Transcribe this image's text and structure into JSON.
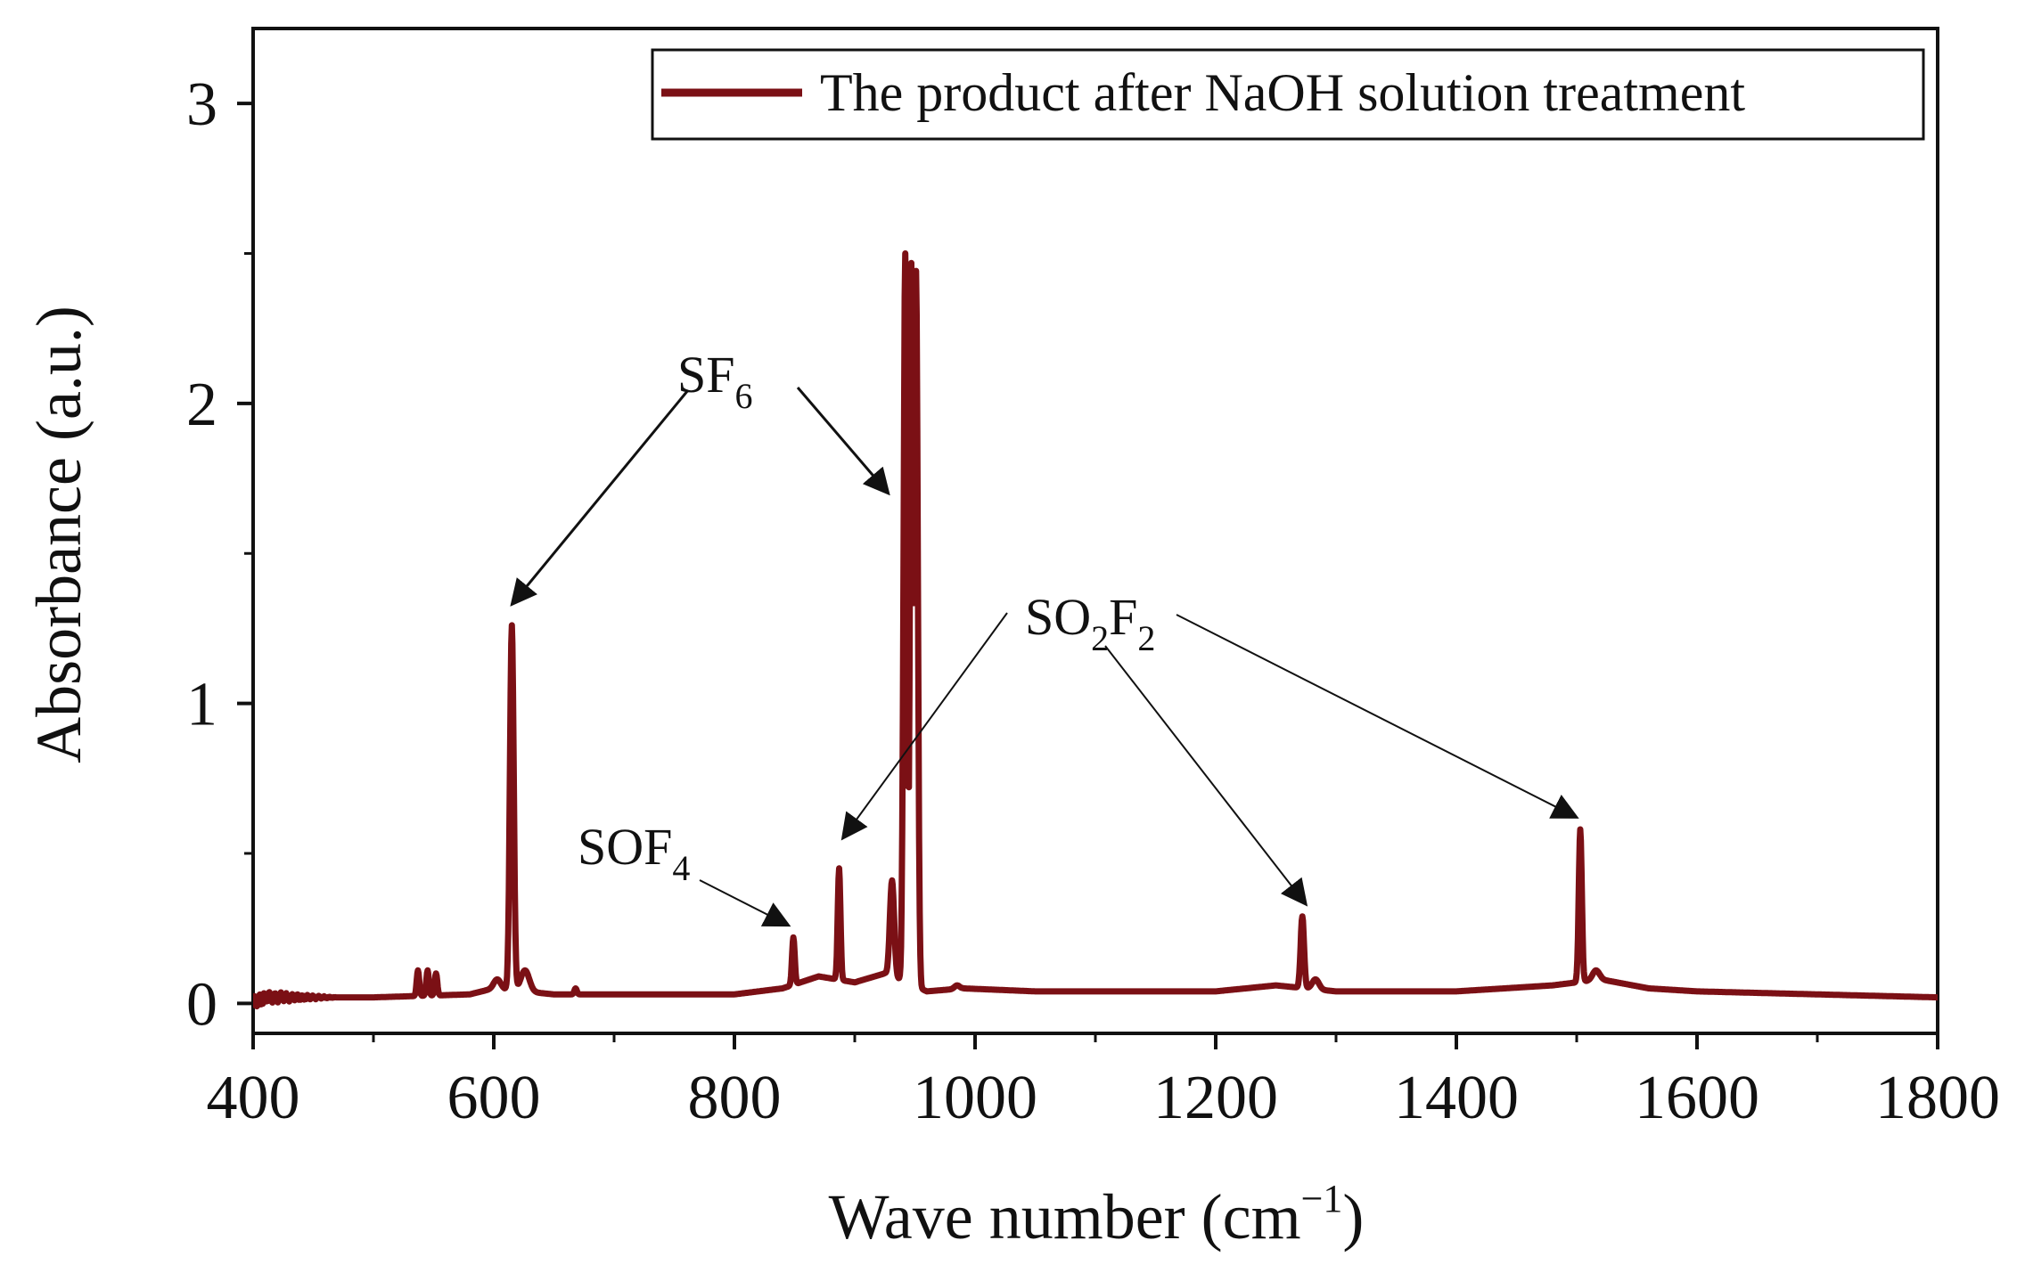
{
  "chart_data": {
    "type": "line",
    "xlabel": "Wave number (cm",
    "xlabel_sup": "−1",
    "xlabel_close": ")",
    "ylabel": "Absorbance (a.u.)",
    "xlim": [
      400,
      1800
    ],
    "ylim": [
      -0.1,
      3.25
    ],
    "x_ticks": [
      400,
      600,
      800,
      1000,
      1200,
      1400,
      1600,
      1800
    ],
    "y_ticks": [
      0,
      1,
      2,
      3
    ],
    "grid": false,
    "legend_position": "top-right",
    "series": [
      {
        "name": "The product after NaOH solution treatment",
        "color": "#7b1015",
        "baseline": [
          [
            400,
            0.0
          ],
          [
            410,
            0.02
          ],
          [
            450,
            0.02
          ],
          [
            500,
            0.02
          ],
          [
            580,
            0.03
          ],
          [
            600,
            0.05
          ],
          [
            650,
            0.03
          ],
          [
            700,
            0.03
          ],
          [
            800,
            0.03
          ],
          [
            840,
            0.05
          ],
          [
            870,
            0.09
          ],
          [
            900,
            0.07
          ],
          [
            925,
            0.1
          ],
          [
            960,
            0.04
          ],
          [
            990,
            0.05
          ],
          [
            1050,
            0.04
          ],
          [
            1200,
            0.04
          ],
          [
            1250,
            0.06
          ],
          [
            1300,
            0.04
          ],
          [
            1400,
            0.04
          ],
          [
            1480,
            0.06
          ],
          [
            1520,
            0.08
          ],
          [
            1560,
            0.05
          ],
          [
            1600,
            0.04
          ],
          [
            1700,
            0.03
          ],
          [
            1800,
            0.02
          ]
        ],
        "peaks": [
          {
            "x": 537,
            "y": 0.11,
            "w": 1.5
          },
          {
            "x": 545,
            "y": 0.11,
            "w": 1.5
          },
          {
            "x": 552,
            "y": 0.1,
            "w": 1.5
          },
          {
            "x": 603,
            "y": 0.08,
            "w": 4
          },
          {
            "x": 615,
            "y": 1.26,
            "w": 2.2
          },
          {
            "x": 626,
            "y": 0.11,
            "w": 5
          },
          {
            "x": 668,
            "y": 0.05,
            "w": 1.5
          },
          {
            "x": 849,
            "y": 0.22,
            "w": 1.6
          },
          {
            "x": 887,
            "y": 0.45,
            "w": 1.6
          },
          {
            "x": 931,
            "y": 0.41,
            "w": 2.5
          },
          {
            "x": 942,
            "y": 2.5,
            "w": 2.0
          },
          {
            "x": 947,
            "y": 2.42,
            "w": 1.5
          },
          {
            "x": 951,
            "y": 2.44,
            "w": 2.0
          },
          {
            "x": 985,
            "y": 0.06,
            "w": 3
          },
          {
            "x": 1272,
            "y": 0.29,
            "w": 2.0
          },
          {
            "x": 1283,
            "y": 0.08,
            "w": 4
          },
          {
            "x": 1503,
            "y": 0.58,
            "w": 1.8
          },
          {
            "x": 1516,
            "y": 0.11,
            "w": 4
          }
        ]
      }
    ],
    "annotations": [
      {
        "label": "SF",
        "sub": "6",
        "targets": [
          [
            615,
            1.33
          ],
          [
            928,
            1.7
          ]
        ]
      },
      {
        "label": "SO",
        "sub": "2",
        "label2": "F",
        "sub2": "2",
        "targets": [
          [
            890,
            0.55
          ],
          [
            1275,
            0.33
          ],
          [
            1500,
            0.62
          ]
        ]
      },
      {
        "label": "SOF",
        "sub": "4",
        "targets": [
          [
            845,
            0.26
          ]
        ]
      }
    ]
  }
}
